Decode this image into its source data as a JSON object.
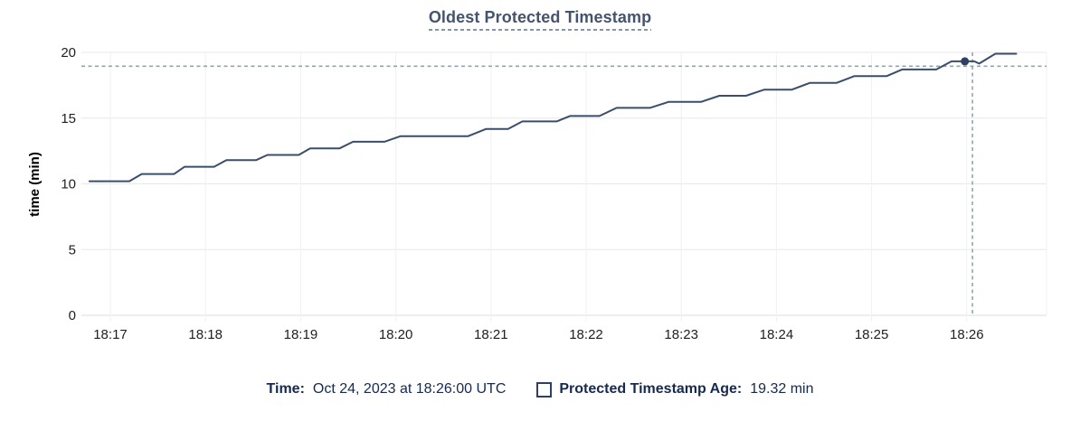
{
  "title": {
    "text": "Oldest Protected Timestamp"
  },
  "footer": {
    "time_label": "Time:",
    "time_value": "Oct 24, 2023 at 18:26:00 UTC",
    "series_label": "Protected Timestamp Age:",
    "series_value": "19.32 min"
  },
  "chart_data": {
    "type": "line",
    "title": "Oldest Protected Timestamp",
    "xlabel": "",
    "ylabel": "time (min)",
    "x_tick_labels": [
      "18:17",
      "18:18",
      "18:19",
      "18:20",
      "18:21",
      "18:22",
      "18:23",
      "18:24",
      "18:25",
      "18:26"
    ],
    "y_ticks": [
      0,
      5,
      10,
      15,
      20
    ],
    "ylim": [
      0,
      20
    ],
    "x_domain_minutes_from_first_tick": [
      -0.3,
      9.84
    ],
    "grid": true,
    "legend_position": "bottom",
    "series": [
      {
        "name": "Protected Timestamp Age",
        "unit": "min",
        "points": [
          [
            -0.22,
            10.2
          ],
          [
            0.2,
            10.2
          ],
          [
            0.33,
            10.75
          ],
          [
            0.67,
            10.75
          ],
          [
            0.78,
            11.3
          ],
          [
            1.09,
            11.3
          ],
          [
            1.22,
            11.8
          ],
          [
            1.53,
            11.8
          ],
          [
            1.65,
            12.2
          ],
          [
            1.98,
            12.2
          ],
          [
            2.1,
            12.7
          ],
          [
            2.41,
            12.7
          ],
          [
            2.55,
            13.2
          ],
          [
            2.88,
            13.2
          ],
          [
            3.05,
            13.63
          ],
          [
            3.76,
            13.63
          ],
          [
            3.95,
            14.18
          ],
          [
            4.18,
            14.18
          ],
          [
            4.33,
            14.75
          ],
          [
            4.69,
            14.75
          ],
          [
            4.83,
            15.16
          ],
          [
            5.14,
            15.16
          ],
          [
            5.32,
            15.78
          ],
          [
            5.67,
            15.78
          ],
          [
            5.87,
            16.24
          ],
          [
            6.21,
            16.24
          ],
          [
            6.4,
            16.7
          ],
          [
            6.68,
            16.7
          ],
          [
            6.87,
            17.16
          ],
          [
            7.16,
            17.16
          ],
          [
            7.35,
            17.68
          ],
          [
            7.63,
            17.68
          ],
          [
            7.82,
            18.2
          ],
          [
            8.16,
            18.2
          ],
          [
            8.32,
            18.7
          ],
          [
            8.68,
            18.7
          ],
          [
            8.84,
            19.32
          ],
          [
            9.08,
            19.32
          ],
          [
            9.13,
            19.15
          ],
          [
            9.3,
            19.9
          ],
          [
            9.52,
            19.9
          ]
        ]
      }
    ],
    "hover": {
      "point_t": 8.98,
      "point_value": 19.32,
      "crosshair_t": 9.06,
      "crosshair_value": 18.95,
      "hovered_time": "18:26:00",
      "hovered_value_label": "19.32 min"
    }
  },
  "colors": {
    "line": "#3a4d6b",
    "dot": "#2e4161",
    "crosshair": "#8fa6b2",
    "grid_h": "#e8e8e8",
    "grid_v": "#f1f1f1",
    "axis": "#dedede",
    "tick_text": "#1f1f1f",
    "axis_title_text": "#000000",
    "title_text": "#44546e",
    "footer_text": "#16294e"
  }
}
